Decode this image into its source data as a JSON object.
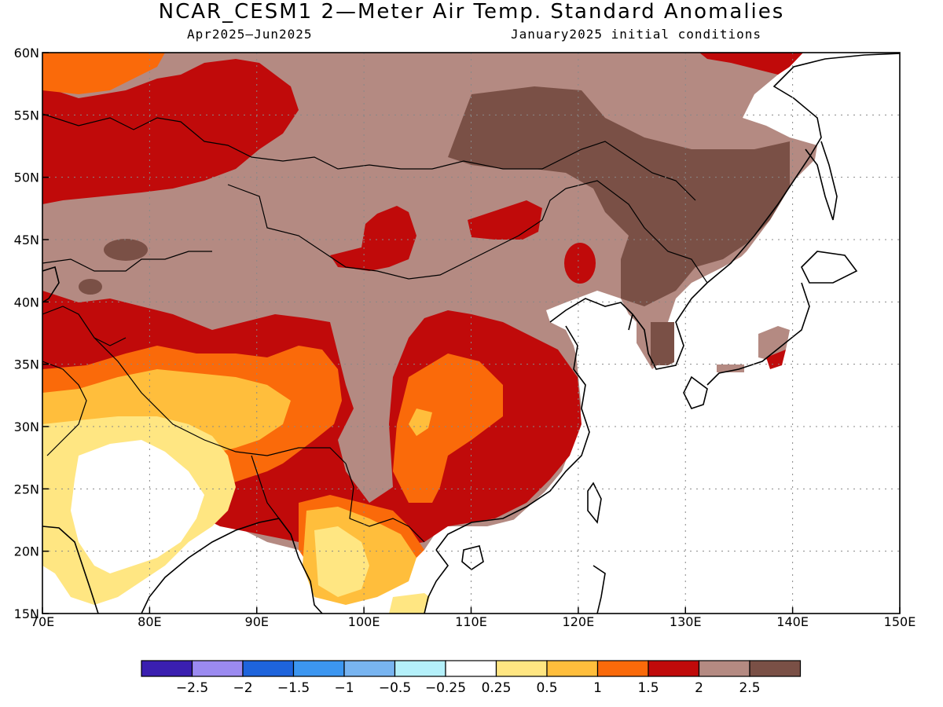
{
  "header": {
    "title": "NCAR_CESM1 2—Meter Air Temp. Standard Anomalies",
    "period": "Apr2025—Jun2025",
    "initial_conditions": "January2025 initial conditions"
  },
  "map": {
    "lon_range": [
      70,
      150
    ],
    "lat_range": [
      15,
      60
    ],
    "lon_ticks": [
      {
        "value": 70,
        "label": "70E"
      },
      {
        "value": 80,
        "label": "80E"
      },
      {
        "value": 90,
        "label": "90E"
      },
      {
        "value": 100,
        "label": "100E"
      },
      {
        "value": 110,
        "label": "110E"
      },
      {
        "value": 120,
        "label": "120E"
      },
      {
        "value": 130,
        "label": "130E"
      },
      {
        "value": 140,
        "label": "140E"
      },
      {
        "value": 150,
        "label": "150E"
      }
    ],
    "lat_ticks": [
      {
        "value": 15,
        "label": "15N"
      },
      {
        "value": 20,
        "label": "20N"
      },
      {
        "value": 25,
        "label": "25N"
      },
      {
        "value": 30,
        "label": "30N"
      },
      {
        "value": 35,
        "label": "35N"
      },
      {
        "value": 40,
        "label": "40N"
      },
      {
        "value": 45,
        "label": "45N"
      },
      {
        "value": 50,
        "label": "50N"
      },
      {
        "value": 55,
        "label": "55N"
      },
      {
        "value": 60,
        "label": "60N"
      }
    ],
    "grid": "dotted"
  },
  "legend": {
    "colors": [
      "#3a1fb0",
      "#9b8af0",
      "#1e64dc",
      "#3c96f0",
      "#78b4f0",
      "#b4f0fa",
      "#ffffff",
      "#ffe682",
      "#ffbe3c",
      "#fa6a0a",
      "#c00a0a",
      "#b48a82",
      "#7a5046"
    ],
    "labels": [
      "−2.5",
      "−2",
      "−1.5",
      "−1",
      "−0.5",
      "−0.25",
      "0.25",
      "0.5",
      "1",
      "1.5",
      "2",
      "2.5"
    ]
  }
}
